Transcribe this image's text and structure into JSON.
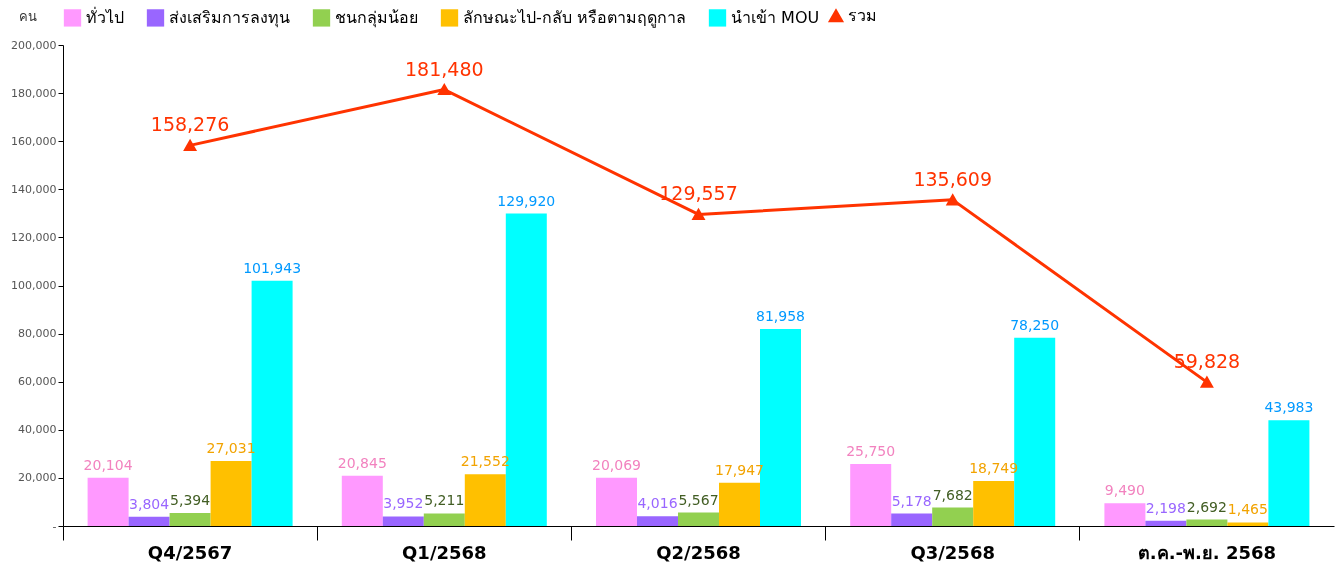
{
  "chart_data": {
    "type": "bar",
    "ylabel": "คน",
    "categories": [
      "Q4/2567",
      "Q1/2568",
      "Q2/2568",
      "Q3/2568",
      "ต.ค.-พ.ย. 2568"
    ],
    "series": [
      {
        "name": "ทั่วไป",
        "color": "#ff99ff",
        "values": [
          20104,
          20845,
          20069,
          25750,
          9490
        ],
        "value_labels": [
          "20,104",
          "20,845",
          "20,069",
          "25,750",
          "9,490"
        ]
      },
      {
        "name": "ส่งเสริมการลงทุน",
        "color": "#9966ff",
        "values": [
          3804,
          3952,
          4016,
          5178,
          2198
        ],
        "value_labels": [
          "3,804",
          "3,952",
          "4,016",
          "5,178",
          "2,198"
        ]
      },
      {
        "name": "ชนกลุ่มน้อย",
        "color": "#92d050",
        "values": [
          5394,
          5211,
          5567,
          7682,
          2692
        ],
        "value_labels": [
          "5,394",
          "5,211",
          "5,567",
          "7,682",
          "2,692"
        ]
      },
      {
        "name": "ลักษณะไป-กลับ หรือตามฤดูกาล",
        "color": "#ffc000",
        "values": [
          27031,
          21552,
          17947,
          18749,
          1465
        ],
        "value_labels": [
          "27,031",
          "21,552",
          "17,947",
          "18,749",
          "1,465"
        ]
      },
      {
        "name": "นำเข้า MOU",
        "color": "#00ffff",
        "values": [
          101943,
          129920,
          81958,
          78250,
          43983
        ],
        "value_labels": [
          "101,943",
          "129,920",
          "81,958",
          "78,250",
          "43,983"
        ]
      },
      {
        "name": "รวม",
        "type": "line",
        "marker": "triangle",
        "color": "#ff3300",
        "values": [
          158276,
          181480,
          129557,
          135609,
          59828
        ],
        "value_labels": [
          "158,276",
          "181,480",
          "129,557",
          "135,609",
          "59,828"
        ]
      }
    ],
    "ylim": [
      0,
      200000
    ],
    "yticks": [
      {
        "value": 0,
        "label": "-"
      },
      {
        "value": 20000,
        "label": "20,000"
      },
      {
        "value": 40000,
        "label": "40,000"
      },
      {
        "value": 60000,
        "label": "60,000"
      },
      {
        "value": 80000,
        "label": "80,000"
      },
      {
        "value": 100000,
        "label": "100,000"
      },
      {
        "value": 120000,
        "label": "120,000"
      },
      {
        "value": 140000,
        "label": "140,000"
      },
      {
        "value": 160000,
        "label": "160,000"
      },
      {
        "value": 180000,
        "label": "180,000"
      },
      {
        "value": 200000,
        "label": "200,000"
      }
    ],
    "legend": "top"
  }
}
